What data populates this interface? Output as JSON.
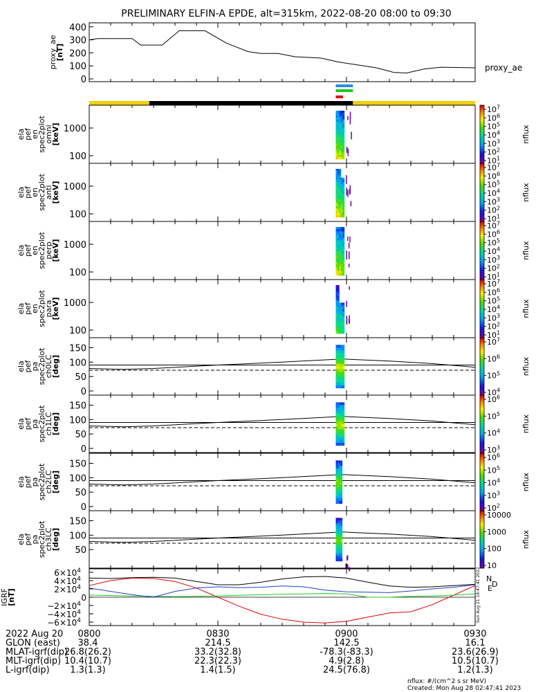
{
  "title": "PRELIMINARY ELFIN-A EPDE, alt=315km, 2022-08-20 08:00 to 09:30",
  "colors": {
    "bar_yellow": "#f0d000",
    "bar_black": "#000000",
    "ind_blue": "#2a8be0",
    "ind_green": "#1ec81e",
    "ind_red": "#e00000",
    "grf_n": "#e00000",
    "grf_e": "#1ec81e",
    "grf_d": "#1f3fd0"
  },
  "ae_panel": {
    "ylabel": [
      "proxy_ae",
      "[nT]"
    ],
    "legend": "proxy_ae",
    "yticks": [
      "400",
      "300",
      "200",
      "100",
      "0"
    ]
  },
  "spec_panels": [
    {
      "ylabel": [
        "ela",
        "pef",
        "en",
        "spec2plot",
        "omni",
        "[keV]"
      ],
      "yticks": [
        "1000",
        "100"
      ],
      "cticks": [
        "10^7",
        "10^6",
        "10^5",
        "10^4",
        "10^3",
        "10^2",
        "10^1"
      ],
      "clabel": "nflux"
    },
    {
      "ylabel": [
        "ela",
        "pef",
        "en",
        "spec2plot",
        "anti",
        "[keV]"
      ],
      "yticks": [
        "1000",
        "100"
      ],
      "cticks": [
        "10^7",
        "10^6",
        "10^5",
        "10^4",
        "10^3",
        "10^2",
        "10^1"
      ],
      "clabel": "nflux"
    },
    {
      "ylabel": [
        "ela",
        "pef",
        "en",
        "spec2plot",
        "perp",
        "[keV]"
      ],
      "yticks": [
        "1000",
        "100"
      ],
      "cticks": [
        "10^7",
        "10^6",
        "10^5",
        "10^4",
        "10^3",
        "10^2",
        "10^1"
      ],
      "clabel": "nflux"
    },
    {
      "ylabel": [
        "ela",
        "pef",
        "en",
        "spec2plot",
        "para",
        "[keV]"
      ],
      "yticks": [
        "1000",
        "100"
      ],
      "cticks": [
        "10^7",
        "10^6",
        "10^5",
        "10^4",
        "10^3",
        "10^2",
        "10^1"
      ],
      "clabel": "nflux"
    }
  ],
  "pa_panels": [
    {
      "ylabel": [
        "ela",
        "pef",
        "pa",
        "spec2plot",
        "ch0LC",
        "[deg]"
      ],
      "yticks": [
        "150",
        "100",
        "50",
        "0"
      ],
      "cticks": [
        "10^7",
        "10^6",
        "10^5",
        "10^4"
      ],
      "clabel": "nflux"
    },
    {
      "ylabel": [
        "ela",
        "pef",
        "pa",
        "spec2plot",
        "ch1LC",
        "[deg]"
      ],
      "yticks": [
        "150",
        "100",
        "50",
        "0"
      ],
      "cticks": [
        "10^6",
        "10^5",
        "10^4",
        "10^3"
      ],
      "clabel": "nflux"
    },
    {
      "ylabel": [
        "ela",
        "pef",
        "pa",
        "spec2plot",
        "ch2LC",
        "[deg]"
      ],
      "yticks": [
        "150",
        "100",
        "50",
        "0"
      ],
      "cticks": [
        "10^6",
        "10^5",
        "10^4",
        "10^3",
        "10^2"
      ],
      "clabel": "nflux"
    },
    {
      "ylabel": [
        "ela",
        "pef",
        "pa",
        "spec2plot",
        "ch3LC",
        "[deg]"
      ],
      "yticks": [
        "150",
        "100",
        "50"
      ],
      "cticks": [
        "10000",
        "1000",
        "100",
        "10"
      ],
      "clabel": "nflux"
    }
  ],
  "grf_panel": {
    "ylabel": [
      "IGRF",
      "[nT]"
    ],
    "yticks": [
      "6×10^4",
      "4×10^4",
      "2×10^4",
      "0",
      "−2×10^4",
      "−4×10^4",
      "−6×10^4"
    ],
    "legend": [
      "N",
      "E",
      "D"
    ],
    "side_note": "Sun Aug 21 18:47:41 2022"
  },
  "x_axis": {
    "rows": [
      {
        "label": "2022 Aug 20",
        "values": [
          "0800",
          "0830",
          "0900",
          "0930"
        ]
      },
      {
        "label": "GLON (east)",
        "values": [
          "38.4",
          "214.5",
          "142.5",
          "16.1"
        ]
      },
      {
        "label": "MLAT-igrf(dip)",
        "values": [
          "26.8(26.2)",
          "33.2(32.8)",
          "-78.3(-83.3)",
          "23.6(26.9)"
        ]
      },
      {
        "label": "MLT-igrf(dip)",
        "values": [
          "10.4(10.7)",
          "22.3(22.3)",
          "4.9(2.8)",
          "10.5(10.7)"
        ]
      },
      {
        "label": "L-igrf(dip)",
        "values": [
          "1.3(1.3)",
          "1.4(1.5)",
          "24.5(76.8)",
          "1.2(1.3)"
        ]
      }
    ]
  },
  "footer": {
    "units": "nflux: #/(cm^2 s sr MeV)",
    "created": "Created: Mon Aug 28 02:47:41 2023"
  },
  "chart_data": {
    "type": "line",
    "title": "PRELIMINARY ELFIN-A EPDE, alt=315km, 2022-08-20 08:00 to 09:30",
    "x_range_minutes": [
      0,
      90
    ],
    "x_tick_labels": [
      "0800",
      "0830",
      "0900",
      "0930"
    ],
    "proxy_ae": {
      "name": "proxy_ae",
      "ylim": [
        0,
        420
      ],
      "points": [
        [
          0,
          300
        ],
        [
          2,
          310
        ],
        [
          10,
          310
        ],
        [
          12,
          260
        ],
        [
          17,
          260
        ],
        [
          21,
          370
        ],
        [
          27,
          370
        ],
        [
          32,
          275
        ],
        [
          37,
          210
        ],
        [
          40,
          195
        ],
        [
          44,
          195
        ],
        [
          48,
          170
        ],
        [
          54,
          160
        ],
        [
          58,
          130
        ],
        [
          62,
          110
        ],
        [
          67,
          85
        ],
        [
          71,
          50
        ],
        [
          74,
          45
        ],
        [
          78,
          75
        ],
        [
          82,
          90
        ],
        [
          90,
          85
        ]
      ]
    },
    "science_zone_bar": {
      "segments": [
        [
          0,
          14,
          "yellow"
        ],
        [
          14,
          61.5,
          "black"
        ],
        [
          61.5,
          90,
          "yellow"
        ]
      ]
    },
    "collection_indicators": [
      {
        "color": "blue",
        "start": 57.5,
        "end": 61.5
      },
      {
        "color": "green",
        "start": 57.5,
        "end": 61.5
      },
      {
        "color": "red",
        "start": 57.5,
        "end": 59.2
      }
    ],
    "spectrogram_time_range": [
      57.5,
      59.5
    ],
    "loss_cone_angles_deg": {
      "times": [
        0,
        8,
        15,
        30,
        45,
        59,
        70,
        80,
        90
      ],
      "solid": [
        78,
        75,
        78,
        90,
        100,
        111,
        104,
        95,
        82
      ],
      "dashed_level": 72
    },
    "igrf": {
      "ylim": [
        -65000,
        65000
      ],
      "times": [
        0,
        5,
        10,
        15,
        20,
        25,
        30,
        35,
        40,
        45,
        50,
        55,
        60,
        65,
        70,
        75,
        80,
        85,
        90
      ],
      "series": [
        {
          "name": "N",
          "values": [
            28000,
            40000,
            46000,
            45000,
            38000,
            22000,
            0,
            -22000,
            -41000,
            -53000,
            -60000,
            -62000,
            -58000,
            -48000,
            -38000,
            -35000,
            -18000,
            5000,
            28000
          ]
        },
        {
          "name": "E",
          "values": [
            5000,
            4000,
            3000,
            2000,
            1500,
            2000,
            3000,
            4500,
            6000,
            7000,
            8000,
            9000,
            8000,
            0,
            0,
            2000,
            3000,
            5000,
            8000
          ]
        },
        {
          "name": "D",
          "values": [
            22000,
            14000,
            6000,
            0,
            14000,
            22000,
            25000,
            23000,
            24000,
            27000,
            25000,
            17000,
            13000,
            12000,
            11000,
            15000,
            20000,
            24000,
            30000
          ]
        }
      ],
      "total": {
        "name": "|B|",
        "values": [
          46000,
          45000,
          47000,
          48000,
          46000,
          38000,
          30000,
          30000,
          36000,
          44000,
          49000,
          50000,
          46000,
          36000,
          27000,
          24000,
          25000,
          28000,
          31000
        ]
      }
    }
  }
}
